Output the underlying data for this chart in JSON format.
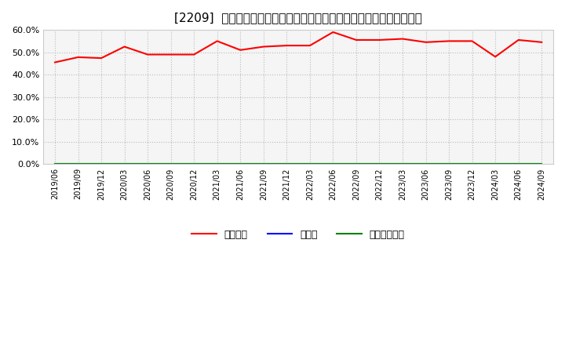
{
  "title": "[2209]  自己資本、のれん、繰延税金資産の総資産に対する比率の推移",
  "x_labels": [
    "2019/06",
    "2019/09",
    "2019/12",
    "2020/03",
    "2020/06",
    "2020/09",
    "2020/12",
    "2021/03",
    "2021/06",
    "2021/09",
    "2021/12",
    "2022/03",
    "2022/06",
    "2022/09",
    "2022/12",
    "2023/03",
    "2023/06",
    "2023/09",
    "2023/12",
    "2024/03",
    "2024/06",
    "2024/09"
  ],
  "jiko_shihon": [
    45.5,
    47.8,
    47.4,
    52.5,
    49.0,
    49.0,
    49.0,
    55.0,
    51.0,
    52.5,
    53.0,
    53.0,
    59.0,
    55.5,
    55.5,
    56.0,
    54.5,
    55.0,
    55.0,
    48.0,
    55.5,
    54.5
  ],
  "noren": [
    0,
    0,
    0,
    0,
    0,
    0,
    0,
    0,
    0,
    0,
    0,
    0,
    0,
    0,
    0,
    0,
    0,
    0,
    0,
    0,
    0,
    0
  ],
  "kuenzeichin": [
    0,
    0,
    0,
    0,
    0,
    0,
    0,
    0,
    0,
    0,
    0,
    0,
    0,
    0,
    0,
    0,
    0,
    0,
    0,
    0,
    0,
    0
  ],
  "line_color_jiko": "#ff0000",
  "line_color_noren": "#0000ff",
  "line_color_kuenzeichin": "#008000",
  "ylim": [
    0,
    60
  ],
  "yticks": [
    0,
    10,
    20,
    30,
    40,
    50,
    60
  ],
  "legend_labels": [
    "自己資本",
    "のれん",
    "繰延税金資産"
  ],
  "background_color": "#ffffff",
  "plot_bg_color": "#f5f5f5",
  "grid_color": "#bbbbbb",
  "title_fontsize": 11,
  "spine_color": "#cccccc"
}
